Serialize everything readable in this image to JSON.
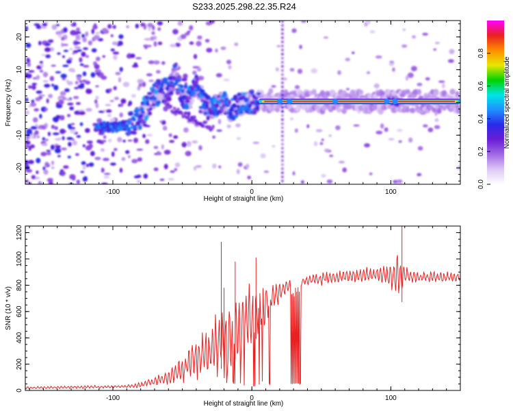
{
  "title": "S233.2025.298.22.35.R24",
  "chart_data": [
    {
      "type": "heatmap",
      "name": "spectrogram",
      "xlabel": "Height of straight line (km)",
      "ylabel": "Frequency (Hz)",
      "xlim": [
        -163,
        150
      ],
      "ylim": [
        -25,
        25
      ],
      "xticks": [
        -100,
        0,
        100
      ],
      "yticks": [
        -20,
        -10,
        0,
        10,
        20
      ],
      "colorbar": {
        "label": "Normalized spectral amplitude",
        "range": [
          0.0,
          1.0
        ],
        "ticks": [
          0.0,
          0.2,
          0.4,
          0.6,
          0.8
        ],
        "colormap": [
          "#ffffff",
          "#dcc8f4",
          "#a26ae6",
          "#6a1ed6",
          "#2a2ae8",
          "#1e90ff",
          "#00e6e6",
          "#00d200",
          "#e8e800",
          "#ff8c00",
          "#e82020",
          "#ff00ff"
        ]
      },
      "ridge": {
        "comment": "dominant frequency track (Hz) vs height (km)",
        "x": [
          -110,
          -100,
          -90,
          -85,
          -80,
          -75,
          -70,
          -65,
          -60,
          -55,
          -50,
          -45,
          -40,
          -35,
          -30,
          -25,
          -20,
          -15,
          -10,
          -5,
          0,
          5,
          20,
          50,
          100,
          150
        ],
        "y": [
          -7.5,
          -7.5,
          -7,
          -6.5,
          -4,
          -1,
          2,
          4,
          3,
          9,
          2,
          1,
          5,
          0,
          -2,
          -1,
          0,
          -3,
          -1,
          0,
          0,
          0.5,
          0.5,
          0.3,
          0.3,
          0.3
        ]
      },
      "events": [
        {
          "x": 20,
          "comment": "vertical striped artifact spanning full frequency range"
        },
        {
          "x": 100,
          "comment": "brief disturbance in the main line"
        }
      ]
    },
    {
      "type": "line",
      "name": "snr",
      "xlabel": "Height of straight line (km)",
      "ylabel": "SNR (10 * v/v)",
      "xlim": [
        -163,
        150
      ],
      "ylim": [
        0,
        1250
      ],
      "xticks": [
        -100,
        0,
        100
      ],
      "yticks": [
        0,
        200,
        400,
        600,
        800,
        1000,
        1200
      ],
      "color": "#e82020",
      "envelope": {
        "comment": "approximate SNR envelope (baseline and oscillation amplitude) vs height",
        "x": [
          -163,
          -90,
          -80,
          -60,
          -50,
          -40,
          -30,
          -20,
          -10,
          0,
          10,
          20,
          25,
          32,
          40,
          60,
          80,
          95,
          100,
          105,
          110,
          120,
          150
        ],
        "base": [
          20,
          30,
          40,
          100,
          170,
          230,
          300,
          380,
          450,
          560,
          670,
          740,
          790,
          820,
          840,
          860,
          880,
          880,
          870,
          860,
          880,
          860,
          860
        ],
        "amp": [
          8,
          10,
          20,
          50,
          100,
          150,
          200,
          250,
          250,
          220,
          150,
          70,
          50,
          30,
          40,
          50,
          50,
          60,
          110,
          160,
          70,
          40,
          40
        ]
      },
      "spikes": [
        {
          "x": -22,
          "y": 1130
        },
        {
          "x": -20,
          "y": 780
        },
        {
          "x": -12,
          "y": 980
        },
        {
          "x": 3,
          "y": 1010
        },
        {
          "x": 108,
          "y": 1250
        }
      ],
      "dropouts": [
        {
          "x_range": [
            28,
            35
          ],
          "min": 45,
          "comment": "SNR drops to near zero"
        }
      ]
    }
  ]
}
